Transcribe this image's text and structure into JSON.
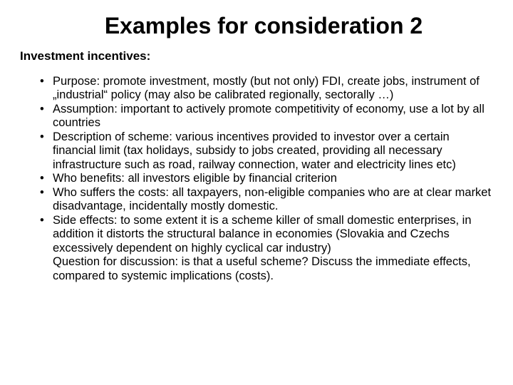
{
  "title": "Examples for consideration 2",
  "subtitle": "Investment incentives:",
  "bullets": [
    "Purpose: promote investment, mostly (but not only) FDI, create jobs, instrument of „industrial“ policy (may also be calibrated regionally, sectorally …)",
    "Assumption: important to actively promote competitivity of economy, use a lot by all countries",
    "Description of scheme: various incentives provided to investor over a certain financial limit (tax holidays, subsidy to jobs created, providing all necessary infrastructure such as road, railway connection, water and electricity lines etc)",
    "Who benefits: all investors eligible by financial criterion",
    "Who suffers the costs: all taxpayers, non-eligible companies who are at clear market disadvantage, incidentally mostly domestic.",
    "Side effects: to some extent it is a scheme killer of small domestic enterprises, in addition it distorts the structural balance in economies (Slovakia and Czechs excessively dependent on highly cyclical car industry)"
  ],
  "question": "Question for discussion: is that a useful scheme? Discuss the immediate effects, compared to systemic implications (costs)."
}
